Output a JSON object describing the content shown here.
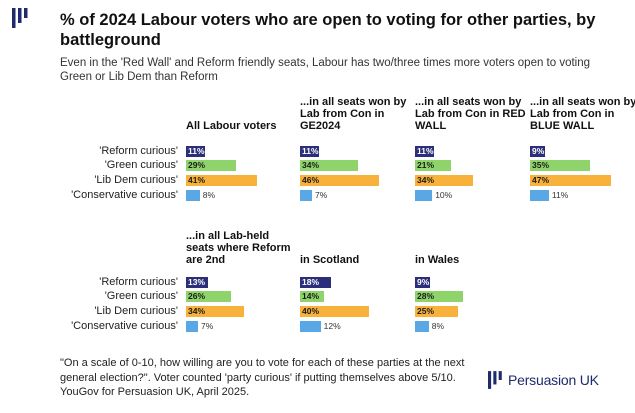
{
  "header": {
    "title": "% of 2024 Labour voters who are open to voting for other parties, by battleground",
    "subtitle": "Even in the 'Red Wall' and Reform friendly seats, Labour has two/three times more voters open to voting Green or Lib Dem than Reform"
  },
  "footer": {
    "note": "\"On a scale of 0-10, how willing are you to vote for each of these parties at the next general election?\". Voter counted 'party curious' if putting themselves above 5/10. YouGov for Persuasion UK, April 2025.",
    "brand": "Persuasion UK"
  },
  "colors": {
    "Reform curious": "#2b2f7a",
    "Green curious": "#8fd46a",
    "Lib Dem curious": "#f8b13a",
    "Conservative curious": "#5aa7e6"
  },
  "chart_data": [
    {
      "type": "bar",
      "title": "All Labour voters",
      "categories": [
        "'Reform curious'",
        "'Green curious'",
        "'Lib Dem curious'",
        "'Conservative curious'"
      ],
      "values": [
        11,
        29,
        41,
        8
      ],
      "value_labels": [
        "11%",
        "29%",
        "41%",
        "8%"
      ]
    },
    {
      "type": "bar",
      "title": "...in all seats won by Lab from Con in GE2024",
      "categories": [
        "'Reform curious'",
        "'Green curious'",
        "'Lib Dem curious'",
        "'Conservative curious'"
      ],
      "values": [
        11,
        34,
        46,
        7
      ],
      "value_labels": [
        "11%",
        "34%",
        "46%",
        "7%"
      ]
    },
    {
      "type": "bar",
      "title": "...in all seats won by Lab from Con in RED WALL",
      "categories": [
        "'Reform curious'",
        "'Green curious'",
        "'Lib Dem curious'",
        "'Conservative curious'"
      ],
      "values": [
        11,
        21,
        34,
        10
      ],
      "value_labels": [
        "11%",
        "21%",
        "34%",
        "10%"
      ]
    },
    {
      "type": "bar",
      "title": "...in all seats won by Lab from Con in BLUE WALL",
      "categories": [
        "'Reform curious'",
        "'Green curious'",
        "'Lib Dem curious'",
        "'Conservative curious'"
      ],
      "values": [
        9,
        35,
        47,
        11
      ],
      "value_labels": [
        "9%",
        "35%",
        "47%",
        "11%"
      ]
    },
    {
      "type": "bar",
      "title": "...in all Lab-held seats where Reform are 2nd",
      "categories": [
        "'Reform curious'",
        "'Green curious'",
        "'Lib Dem curious'",
        "'Conservative curious'"
      ],
      "values": [
        13,
        26,
        34,
        7
      ],
      "value_labels": [
        "13%",
        "26%",
        "34%",
        "7%"
      ]
    },
    {
      "type": "bar",
      "title": "in Scotland",
      "categories": [
        "'Reform curious'",
        "'Green curious'",
        "'Lib Dem curious'",
        "'Conservative curious'"
      ],
      "values": [
        18,
        14,
        40,
        12
      ],
      "value_labels": [
        "18%",
        "14%",
        "40%",
        "12%"
      ]
    },
    {
      "type": "bar",
      "title": "in Wales",
      "categories": [
        "'Reform curious'",
        "'Green curious'",
        "'Lib Dem curious'",
        "'Conservative curious'"
      ],
      "values": [
        9,
        28,
        25,
        8
      ],
      "value_labels": [
        "9%",
        "28%",
        "25%",
        "8%"
      ]
    }
  ]
}
